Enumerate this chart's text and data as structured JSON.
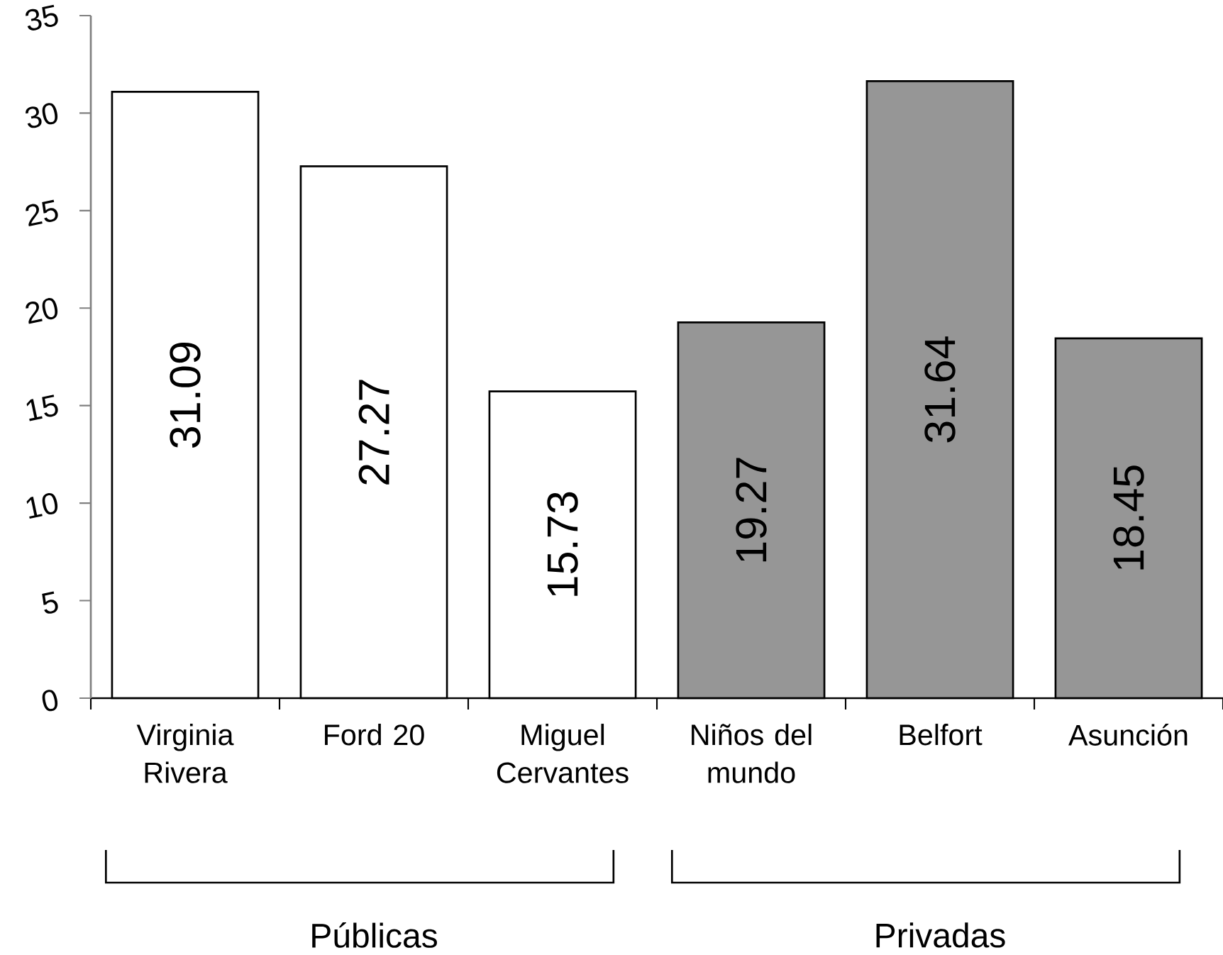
{
  "chart_data": {
    "type": "bar",
    "categories": [
      "Virginia Rivera",
      "Ford 20",
      "Miguel Cervantes",
      "Niños del mundo",
      "Belfort",
      "Asunción"
    ],
    "values": [
      31.09,
      27.27,
      15.73,
      19.27,
      31.64,
      18.45
    ],
    "colors": [
      "#ffffff",
      "#ffffff",
      "#ffffff",
      "#969696",
      "#969696",
      "#969696"
    ],
    "ylim": [
      0,
      35
    ],
    "yticks": [
      0,
      5,
      10,
      15,
      20,
      25,
      30,
      35
    ],
    "data_labels": true,
    "annotations": [
      "Públicas",
      "Privadas"
    ]
  }
}
